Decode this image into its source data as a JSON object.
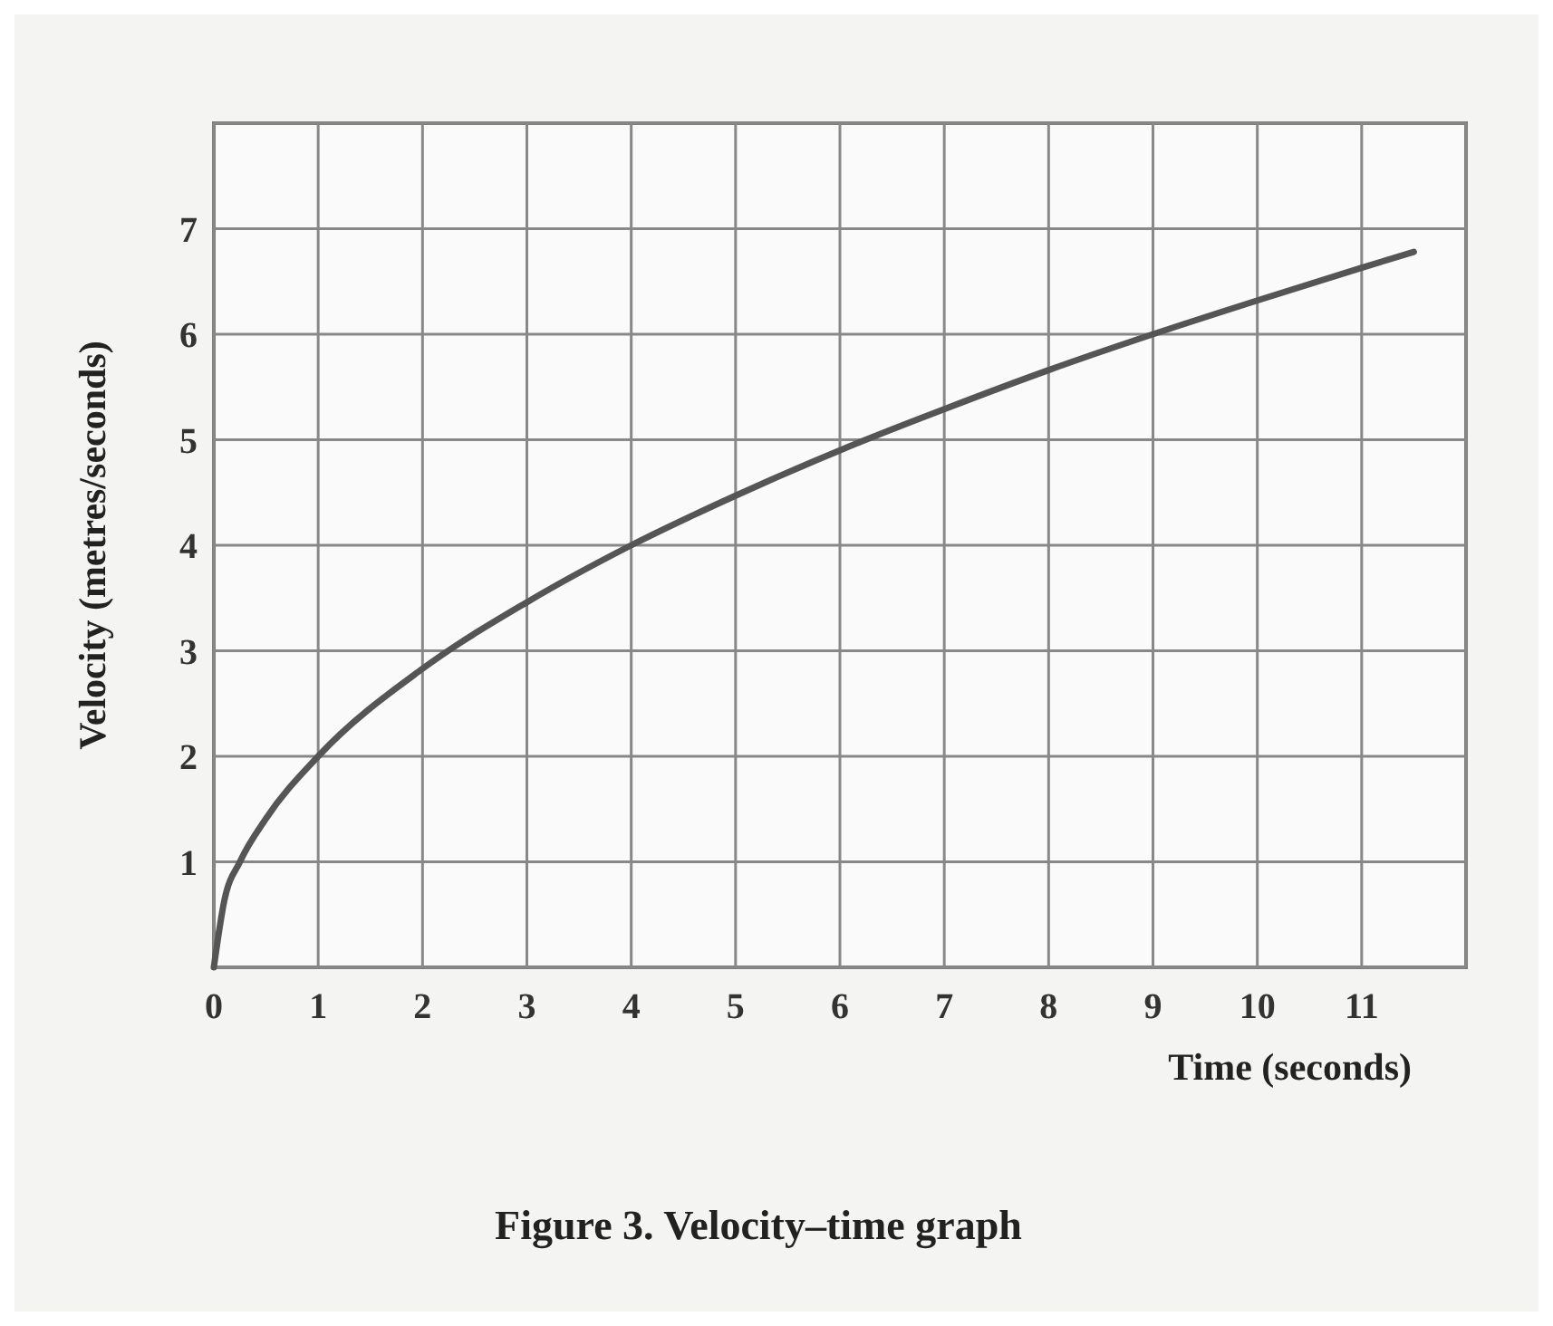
{
  "chart_data": {
    "type": "line",
    "xlabel": "Time (seconds)",
    "ylabel": "Velocity (metres/seconds)",
    "x": [
      0,
      0.1,
      0.25,
      0.5,
      1,
      2,
      3,
      4,
      5,
      6,
      7,
      8,
      9,
      10,
      11,
      11.5
    ],
    "series": [
      {
        "color": "#555555",
        "values": [
          0,
          0.63,
          1.0,
          1.41,
          2,
          2.83,
          3.46,
          4,
          4.47,
          4.9,
          5.29,
          5.66,
          6,
          6.32,
          6.63,
          6.78
        ]
      }
    ],
    "xlim": [
      0,
      12
    ],
    "ylim": [
      0,
      8
    ],
    "xticks": [
      0,
      1,
      2,
      3,
      4,
      5,
      6,
      7,
      8,
      9,
      10,
      11,
      {
        "value": 12,
        "label": null
      }
    ],
    "yticks": [
      {
        "value": 0,
        "label": null
      },
      1,
      2,
      3,
      4,
      5,
      6,
      7,
      {
        "value": 8,
        "label": null
      }
    ],
    "grid": true,
    "marker": "none",
    "line_style": "solid",
    "annotations": [
      "Figure 3.  Velocity–time graph"
    ]
  }
}
